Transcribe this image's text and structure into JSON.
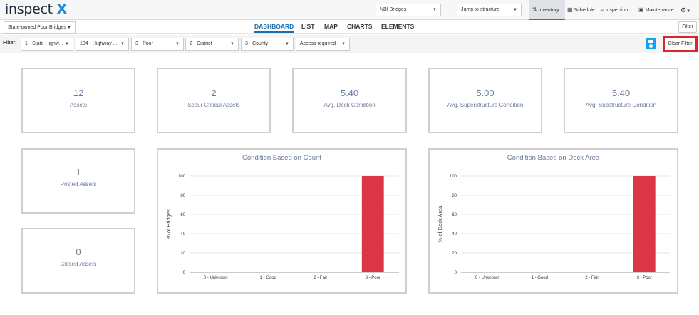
{
  "header": {
    "logo_text": "inspect",
    "logo_accent": "X",
    "dataset_select": "NBI Bridges",
    "jump_select": "Jump to structure",
    "nav": [
      {
        "label": "Inventory",
        "icon": "inventory-icon"
      },
      {
        "label": "Schedule",
        "icon": "calendar-icon"
      },
      {
        "label": "Inspection",
        "icon": "search-icon"
      },
      {
        "label": "Maintenance",
        "icon": "toolbox-icon"
      }
    ],
    "settings_icon": "gear-icon"
  },
  "subbar": {
    "saved_view": "State-owned Poor Bridges",
    "tabs": [
      "DASHBOARD",
      "LIST",
      "MAP",
      "CHARTS",
      "ELEMENTS"
    ],
    "active_tab": "DASHBOARD",
    "filter_button": "Filter"
  },
  "filters": {
    "label": "Filter:",
    "items": [
      "1 - State Highw...",
      "104 - Highway ...",
      "3 - Poor",
      "2 - District",
      "3 - County",
      "Access required"
    ],
    "clear_label": "Clear Filter"
  },
  "cards": [
    {
      "value": "12",
      "label": "Assets"
    },
    {
      "value": "2",
      "label": "Scour Critical Assets"
    },
    {
      "value": "5.40",
      "label": "Avg. Deck Condition"
    },
    {
      "value": "5.00",
      "label": "Avg. Superstructure Condition"
    },
    {
      "value": "5.40",
      "label": "Avg. Substructure Condition"
    },
    {
      "value": "1",
      "label": "Posted Assets"
    },
    {
      "value": "0",
      "label": "Closed Assets"
    }
  ],
  "colors": {
    "bar": "#dc3545",
    "accent": "#1a6fb0",
    "clear_border": "#d9252f"
  },
  "chart_data": [
    {
      "type": "bar",
      "title": "Condition Based on Count",
      "categories": [
        "0 - Unknown",
        "1 - Good",
        "2 - Fair",
        "3 - Poor"
      ],
      "values": [
        0,
        0,
        0,
        100
      ],
      "ylabel": "% of Bridges",
      "xlabel": "",
      "ylim": [
        0,
        100
      ],
      "yticks": [
        0,
        20,
        40,
        60,
        80,
        100
      ],
      "grid": true
    },
    {
      "type": "bar",
      "title": "Condition Based on Deck Area",
      "categories": [
        "0 - Unknown",
        "1 - Good",
        "2 - Fair",
        "3 - Poor"
      ],
      "values": [
        0,
        0,
        0,
        100
      ],
      "ylabel": "% of Deck Area",
      "xlabel": "",
      "ylim": [
        0,
        100
      ],
      "yticks": [
        0,
        20,
        40,
        60,
        80,
        100
      ],
      "grid": true
    }
  ]
}
